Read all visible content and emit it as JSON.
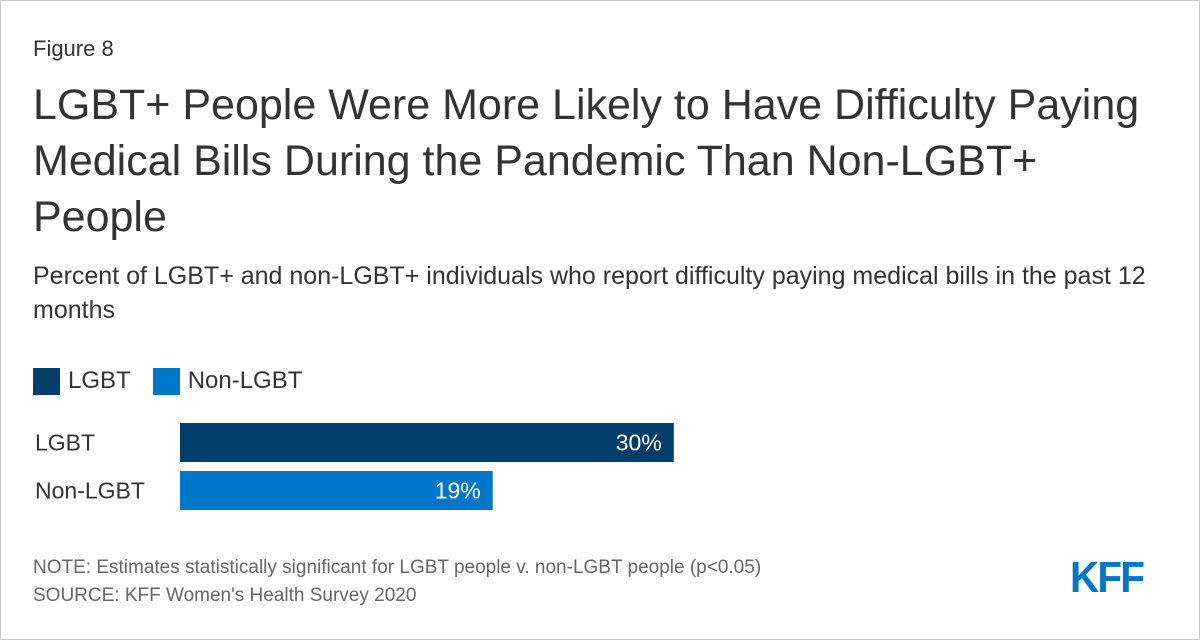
{
  "figure_label": "Figure 8",
  "title": "LGBT+ People Were More Likely to Have Difficulty Paying Medical Bills During the Pandemic Than Non-LGBT+ People",
  "subtitle": "Percent of LGBT+ and non-LGBT+ individuals who report difficulty paying medical bills in the past 12 months",
  "legend": [
    {
      "label": "LGBT",
      "color": "#023e69"
    },
    {
      "label": "Non-LGBT",
      "color": "#0077c8"
    }
  ],
  "chart_data": {
    "type": "bar",
    "orientation": "horizontal",
    "categories": [
      "LGBT",
      "Non-LGBT"
    ],
    "values": [
      30,
      19
    ],
    "value_labels": [
      "30%",
      "19%"
    ],
    "colors": [
      "#023e69",
      "#0077c8"
    ],
    "xlim": [
      0,
      100
    ],
    "grid": false,
    "legend_position": "top-left"
  },
  "note": "NOTE: Estimates statistically significant for LGBT people v. non-LGBT people (p<0.05)",
  "source": "SOURCE: KFF Women's Health Survey 2020",
  "logo_text": "KFF"
}
